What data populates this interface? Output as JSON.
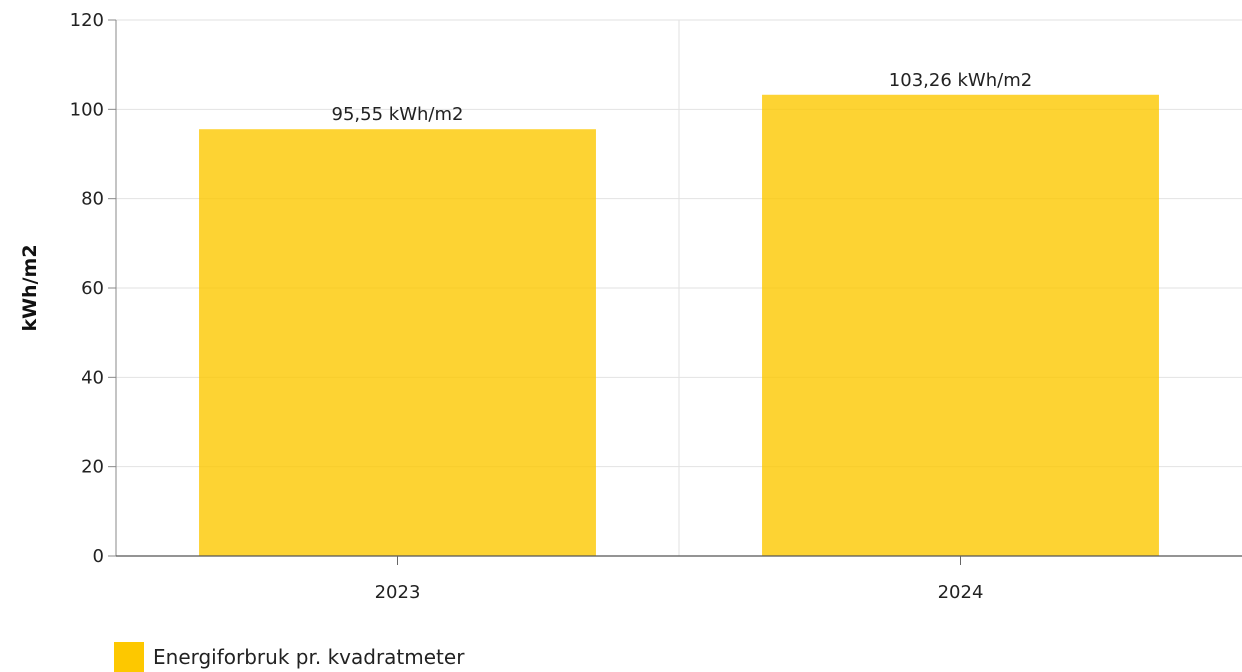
{
  "chart_data": {
    "type": "bar",
    "categories": [
      "2023",
      "2024"
    ],
    "series": [
      {
        "name": "Energiforbruk pr. kvadratmeter",
        "values": [
          95.55,
          103.26
        ],
        "data_labels": [
          "95,55 kWh/m2",
          "103,26 kWh/m2"
        ],
        "color": "#fdc800"
      }
    ],
    "title": "",
    "xlabel": "",
    "ylabel": "kWh/m2",
    "ylim": [
      0,
      120
    ],
    "yticks": [
      0,
      20,
      40,
      60,
      80,
      100,
      120
    ],
    "grid": true,
    "legend_position": "bottom-left"
  }
}
